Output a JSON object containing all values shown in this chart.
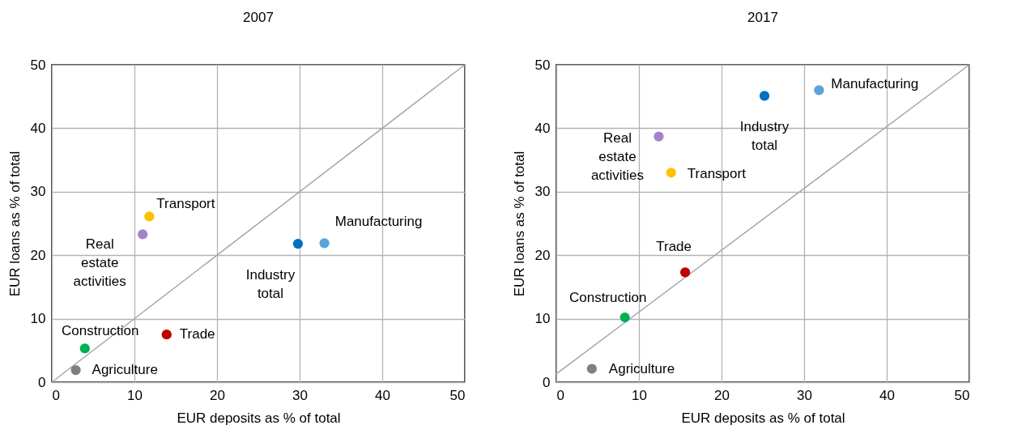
{
  "chart_data": [
    {
      "type": "scatter",
      "title": "2007",
      "xlabel": "EUR deposits as % of total",
      "ylabel": "EUR loans as % of total",
      "xlim": [
        0,
        50
      ],
      "ylim": [
        0,
        50
      ],
      "xticks": [
        0,
        10,
        20,
        30,
        40,
        50
      ],
      "yticks": [
        0,
        10,
        20,
        30,
        40,
        50
      ],
      "grid": true,
      "legend": false,
      "marker": "circle",
      "series": [
        {
          "name": "Agriculture",
          "color": "#7f7f7f",
          "x": [
            2.9
          ],
          "values": [
            1.9
          ]
        },
        {
          "name": "Construction",
          "color": "#00b050",
          "x": [
            4.0
          ],
          "values": [
            5.3
          ]
        },
        {
          "name": "Trade",
          "color": "#c00000",
          "x": [
            13.9
          ],
          "values": [
            7.5
          ]
        },
        {
          "name": "Real estate activities",
          "color": "#a683c9",
          "x": [
            11.0
          ],
          "values": [
            23.3
          ]
        },
        {
          "name": "Transport",
          "color": "#ffc000",
          "x": [
            11.8
          ],
          "values": [
            26.1
          ]
        },
        {
          "name": "Industry total",
          "color": "#0070c0",
          "x": [
            29.8
          ],
          "values": [
            21.8
          ]
        },
        {
          "name": "Manufacturing",
          "color": "#5ba3d9",
          "x": [
            33.0
          ],
          "values": [
            21.9
          ]
        },
        {
          "type": "line",
          "color": "#a6a6a6",
          "marker": "none",
          "x": [
            0,
            50
          ],
          "values": [
            0,
            50
          ]
        }
      ]
    },
    {
      "type": "scatter",
      "title": "2017",
      "xlabel": "EUR deposits as % of total",
      "ylabel": "EUR loans as % of total",
      "xlim": [
        0,
        50
      ],
      "ylim": [
        0,
        50
      ],
      "xticks": [
        0,
        10,
        20,
        30,
        40,
        50
      ],
      "yticks": [
        0,
        10,
        20,
        30,
        40,
        50
      ],
      "grid": true,
      "legend": false,
      "marker": "circle",
      "series": [
        {
          "name": "Agriculture",
          "color": "#7f7f7f",
          "x": [
            4.3
          ],
          "values": [
            2.1
          ]
        },
        {
          "name": "Construction",
          "color": "#00b050",
          "x": [
            8.3
          ],
          "values": [
            10.2
          ]
        },
        {
          "name": "Trade",
          "color": "#c00000",
          "x": [
            15.6
          ],
          "values": [
            17.3
          ]
        },
        {
          "name": "Real estate activities",
          "color": "#a683c9",
          "x": [
            12.4
          ],
          "values": [
            38.7
          ]
        },
        {
          "name": "Transport",
          "color": "#ffc000",
          "x": [
            13.9
          ],
          "values": [
            33.0
          ]
        },
        {
          "name": "Industry total",
          "color": "#0070c0",
          "x": [
            25.2
          ],
          "values": [
            45.1
          ]
        },
        {
          "name": "Manufacturing",
          "color": "#5ba3d9",
          "x": [
            31.8
          ],
          "values": [
            46.0
          ]
        },
        {
          "type": "line",
          "color": "#a6a6a6",
          "marker": "none",
          "x": [
            0,
            50
          ],
          "values": [
            1.3,
            50
          ]
        }
      ]
    }
  ]
}
